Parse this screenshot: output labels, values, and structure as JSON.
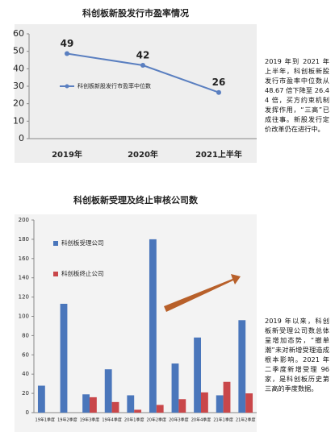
{
  "chart_data": [
    {
      "type": "line",
      "title": "科创板新股发行市盈率情况",
      "categories": [
        "2019年",
        "2020年",
        "2021上半年"
      ],
      "series": [
        {
          "name": "科创板新股发行市盈率中位数",
          "color": "#5a7fc0",
          "values": [
            48.67,
            42,
            26.44
          ],
          "value_labels": [
            "49",
            "42",
            "26"
          ]
        }
      ],
      "ylim": [
        0,
        60
      ],
      "yticks": [
        0,
        10,
        20,
        30,
        40,
        50,
        60
      ],
      "grid": false,
      "annotation": "2019 年到 2021 年上半年，科创板新股发行市盈率中位数从 48.67 倍下降至 26.44 倍，买方约束机制发挥作用，“三高”已成往事。新股发行定价改革仍在进行中。"
    },
    {
      "type": "bar",
      "title": "科创板新受理及终止审核公司数",
      "categories": [
        "19年1季度",
        "19年2季度",
        "19年3季度",
        "19年4季度",
        "20年1季度",
        "20年2季度",
        "20年3季度",
        "20年4季度",
        "21年1季度",
        "21年2季度"
      ],
      "series": [
        {
          "name": "科创板受理公司",
          "color": "#4a76bb",
          "values": [
            28,
            113,
            19,
            45,
            18,
            180,
            51,
            78,
            18,
            96
          ]
        },
        {
          "name": "科创板终止公司",
          "color": "#c9474a",
          "values": [
            0,
            0,
            16,
            11,
            3,
            8,
            14,
            21,
            32,
            20
          ]
        }
      ],
      "ylim": [
        0,
        200
      ],
      "yticks": [
        0,
        20,
        40,
        60,
        80,
        100,
        120,
        140,
        160,
        180,
        200
      ],
      "grid": false,
      "annotation": "2019 年以来，科创板新受理公司数总体呈增加态势，“撤单潮”未对新增受理造成根本影响。2021 年二季度新增受理 96 家，是科创板历史第三高的季度数据。"
    }
  ]
}
